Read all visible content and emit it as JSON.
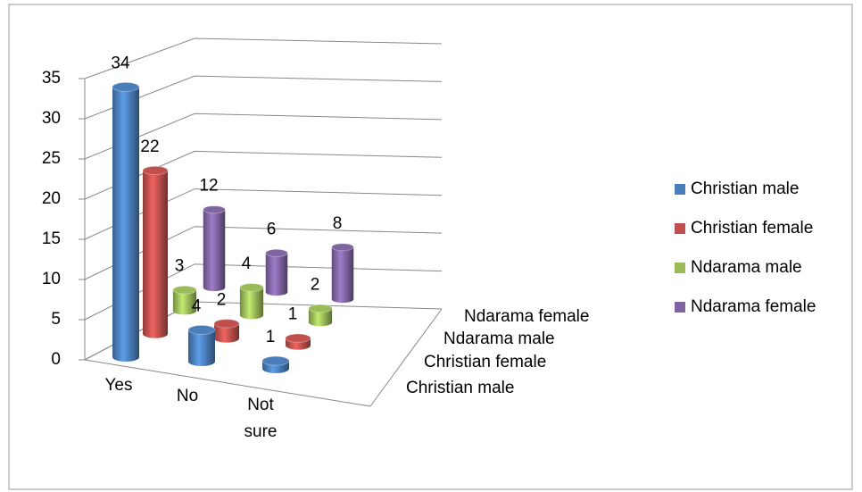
{
  "chart_data": {
    "type": "bar3d",
    "categories": [
      "Yes",
      "No",
      "Not sure"
    ],
    "series": [
      {
        "name": "Christian male",
        "color": "#4a7ebb",
        "values": [
          34,
          4,
          1
        ]
      },
      {
        "name": "Christian female",
        "color": "#c0504d",
        "values": [
          22,
          2,
          1
        ]
      },
      {
        "name": "Ndarama male",
        "color": "#9bbb59",
        "values": [
          3,
          4,
          2
        ]
      },
      {
        "name": "Ndarama female",
        "color": "#8064a2",
        "values": [
          12,
          6,
          8
        ]
      }
    ],
    "ylim": [
      0,
      35
    ],
    "yticks": [
      0,
      5,
      10,
      15,
      20,
      25,
      30,
      35
    ],
    "grid": true,
    "legend": "right"
  }
}
